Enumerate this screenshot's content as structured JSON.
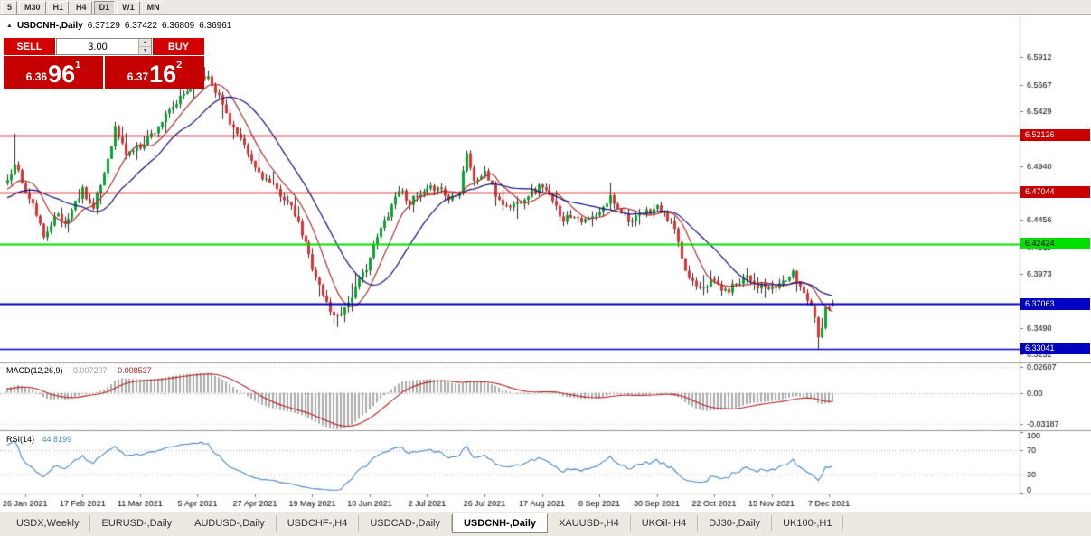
{
  "window": {
    "toolbar": {
      "timeframes": [
        "5",
        "M30",
        "H1",
        "H4",
        "D1",
        "W1",
        "MN"
      ],
      "active": "D1"
    }
  },
  "icons": {
    "collapse": "▲",
    "spinner_up": "▲",
    "spinner_down": "▼"
  },
  "title": {
    "symbol": "USDCNH-,Daily"
  },
  "trade_panel": {
    "sell_label": "SELL",
    "buy_label": "BUY",
    "volume": "3.00",
    "sell_price_head": "6.36",
    "sell_price_big": "96",
    "sell_price_sup": "1",
    "buy_price_head": "6.37",
    "buy_price_big": "16",
    "buy_price_sup": "2"
  },
  "colors": {
    "up": "#0AA334",
    "down": "#E03232",
    "wick": "#2B2B2B"
  },
  "chart_data": {
    "type": "candlestick",
    "symbol": "USDCNH",
    "timeframe": "Daily",
    "last_bar": {
      "open": 6.37129,
      "high": 6.37422,
      "low": 6.36809,
      "close": 6.36961
    },
    "y_axis": {
      "scale_min": 6.319,
      "scale_max": 6.628,
      "ticks": [
        "6.5912",
        "6.5667",
        "6.5429",
        "6.5191",
        "6.4940",
        "6.4704",
        "6.4456",
        "6.4211",
        "6.3973",
        "6.3725",
        "6.3490",
        "6.3252"
      ]
    },
    "x_axis": {
      "dates": [
        {
          "label": "26 Jan 2021",
          "bar": 5
        },
        {
          "label": "17 Feb 2021",
          "bar": 21
        },
        {
          "label": "11 Mar 2021",
          "bar": 37
        },
        {
          "label": "5 Apr 2021",
          "bar": 53
        },
        {
          "label": "27 Apr 2021",
          "bar": 69
        },
        {
          "label": "19 May 2021",
          "bar": 85
        },
        {
          "label": "10 Jun 2021",
          "bar": 101
        },
        {
          "label": "2 Jul 2021",
          "bar": 117
        },
        {
          "label": "26 Jul 2021",
          "bar": 133
        },
        {
          "label": "17 Aug 2021",
          "bar": 149
        },
        {
          "label": "8 Sep 2021",
          "bar": 165
        },
        {
          "label": "30 Sep 2021",
          "bar": 181
        },
        {
          "label": "22 Oct 2021",
          "bar": 197
        },
        {
          "label": "15 Nov 2021",
          "bar": 213
        },
        {
          "label": "7 Dec 2021",
          "bar": 229
        }
      ]
    },
    "horizontal_lines": [
      {
        "price": 6.52126,
        "label": "6.52126",
        "color": "#C80000",
        "text": "#FFFFFF",
        "width": 1.5
      },
      {
        "price": 6.47044,
        "label": "6.47044",
        "color": "#C80000",
        "text": "#FFFFFF",
        "width": 1.5
      },
      {
        "price": 6.42424,
        "label": "6.42424",
        "color": "#00E000",
        "text": "#000000",
        "width": 2
      },
      {
        "price": 6.37063,
        "label": "6.37063",
        "color": "#0000C0",
        "text": "#FFFFFF",
        "width": 2
      },
      {
        "price": 6.33041,
        "label": "6.33041",
        "color": "#0000C0",
        "text": "#FFFFFF",
        "width": 1.5
      }
    ],
    "bars": {
      "count": 231,
      "preroll": 33,
      "seed": 11,
      "noise": 0.0035,
      "wick": 0.005,
      "price_path_anchors": [
        [
          -33,
          6.452
        ],
        [
          -22,
          6.462
        ],
        [
          -12,
          6.458
        ],
        [
          -5,
          6.472
        ],
        [
          0,
          6.478
        ],
        [
          2,
          6.498
        ],
        [
          5,
          6.47
        ],
        [
          8,
          6.452
        ],
        [
          10,
          6.428
        ],
        [
          13,
          6.452
        ],
        [
          16,
          6.442
        ],
        [
          21,
          6.474
        ],
        [
          24,
          6.455
        ],
        [
          27,
          6.488
        ],
        [
          30,
          6.528
        ],
        [
          33,
          6.505
        ],
        [
          37,
          6.512
        ],
        [
          41,
          6.526
        ],
        [
          45,
          6.542
        ],
        [
          49,
          6.558
        ],
        [
          53,
          6.57
        ],
        [
          56,
          6.575
        ],
        [
          59,
          6.556
        ],
        [
          62,
          6.534
        ],
        [
          65,
          6.516
        ],
        [
          69,
          6.492
        ],
        [
          73,
          6.478
        ],
        [
          77,
          6.466
        ],
        [
          80,
          6.45
        ],
        [
          83,
          6.424
        ],
        [
          85,
          6.404
        ],
        [
          88,
          6.378
        ],
        [
          91,
          6.359
        ],
        [
          94,
          6.367
        ],
        [
          97,
          6.384
        ],
        [
          100,
          6.404
        ],
        [
          103,
          6.43
        ],
        [
          106,
          6.452
        ],
        [
          109,
          6.474
        ],
        [
          112,
          6.462
        ],
        [
          115,
          6.467
        ],
        [
          117,
          6.471
        ],
        [
          120,
          6.477
        ],
        [
          123,
          6.464
        ],
        [
          126,
          6.473
        ],
        [
          128,
          6.507
        ],
        [
          130,
          6.479
        ],
        [
          133,
          6.489
        ],
        [
          136,
          6.468
        ],
        [
          139,
          6.457
        ],
        [
          142,
          6.461
        ],
        [
          145,
          6.469
        ],
        [
          149,
          6.477
        ],
        [
          152,
          6.461
        ],
        [
          155,
          6.447
        ],
        [
          158,
          6.451
        ],
        [
          161,
          6.444
        ],
        [
          165,
          6.451
        ],
        [
          168,
          6.466
        ],
        [
          171,
          6.454
        ],
        [
          174,
          6.444
        ],
        [
          177,
          6.451
        ],
        [
          181,
          6.457
        ],
        [
          184,
          6.447
        ],
        [
          186,
          6.438
        ],
        [
          188,
          6.408
        ],
        [
          190,
          6.394
        ],
        [
          193,
          6.387
        ],
        [
          197,
          6.391
        ],
        [
          200,
          6.381
        ],
        [
          203,
          6.389
        ],
        [
          206,
          6.397
        ],
        [
          209,
          6.387
        ],
        [
          213,
          6.383
        ],
        [
          216,
          6.391
        ],
        [
          219,
          6.397
        ],
        [
          222,
          6.381
        ],
        [
          224,
          6.371
        ],
        [
          226,
          6.344
        ],
        [
          227,
          6.352
        ],
        [
          228,
          6.366
        ],
        [
          230,
          6.3696
        ]
      ],
      "forced_wicks": [
        {
          "i": 226,
          "low": 6.3306
        },
        {
          "i": 56,
          "high": 6.5795
        },
        {
          "i": 2,
          "high": 6.523
        },
        {
          "i": 91,
          "low": 6.353
        }
      ]
    },
    "moving_averages": [
      {
        "period": 9,
        "color": "#B23030"
      },
      {
        "period": 20,
        "color": "#14147A"
      }
    ],
    "indicators": {
      "macd": {
        "label": "MACD(12,26,9)",
        "value_main": "-0.007207",
        "value_signal": "-0.008537",
        "hist_color": "#ABABAB",
        "signal_color": "#B22222",
        "range": [
          -0.038,
          0.03
        ],
        "ticks": [
          {
            "label": "0.02607",
            "value": 0.02607
          },
          {
            "label": "0.00",
            "value": 0
          },
          {
            "label": "-0.03187",
            "value": -0.03187
          }
        ]
      },
      "rsi": {
        "label": "RSI(14)",
        "value": "44.8199",
        "color": "#4886C8",
        "levels": [
          70,
          30
        ],
        "ticks": [
          {
            "label": "100",
            "value": 100
          },
          {
            "label": "70",
            "value": 70
          },
          {
            "label": "30",
            "value": 30
          },
          {
            "label": "0",
            "value": 0
          }
        ]
      }
    }
  },
  "tabs": {
    "items": [
      {
        "label": "USDX,Weekly"
      },
      {
        "label": "EURUSD-,Daily"
      },
      {
        "label": "AUDUSD-,Daily"
      },
      {
        "label": "USDCHF-,H4"
      },
      {
        "label": "USDCAD-,Daily"
      },
      {
        "label": "USDCNH-,Daily",
        "active": true
      },
      {
        "label": "XAUUSD-,H4"
      },
      {
        "label": "UKOil-,H4"
      },
      {
        "label": "DJ30-,Daily"
      },
      {
        "label": "UK100-,H1"
      }
    ]
  }
}
